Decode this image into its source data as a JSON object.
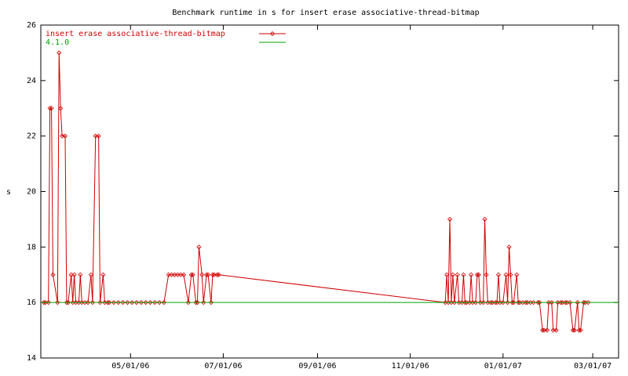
{
  "chart_data": {
    "type": "line",
    "title": "Benchmark runtime in s for insert erase associative-thread-bitmap",
    "y_label": "s",
    "xlim": [
      "2006-03-03",
      "2007-03-18"
    ],
    "xticks": [
      {
        "value": "2006-05-01",
        "label": "05/01/06"
      },
      {
        "value": "2006-07-01",
        "label": "07/01/06"
      },
      {
        "value": "2006-09-01",
        "label": "09/01/06"
      },
      {
        "value": "2006-11-01",
        "label": "11/01/06"
      },
      {
        "value": "2007-01-01",
        "label": "01/01/07"
      },
      {
        "value": "2007-03-01",
        "label": "03/01/07"
      }
    ],
    "ylim": [
      14,
      26
    ],
    "yticks": [
      14,
      16,
      18,
      20,
      22,
      24,
      26
    ],
    "legend": "top-left",
    "series": [
      {
        "name": "insert erase associative-thread-bitmap",
        "color": "#d00000",
        "markers": true,
        "x": [
          "2006-03-05",
          "2006-03-06",
          "2006-03-08",
          "2006-03-09",
          "2006-03-10",
          "2006-03-11",
          "2006-03-14",
          "2006-03-15",
          "2006-03-16",
          "2006-03-17",
          "2006-03-19",
          "2006-03-20",
          "2006-03-21",
          "2006-03-23",
          "2006-03-24",
          "2006-03-25",
          "2006-03-26",
          "2006-03-28",
          "2006-03-29",
          "2006-03-30",
          "2006-04-01",
          "2006-04-03",
          "2006-04-05",
          "2006-04-06",
          "2006-04-08",
          "2006-04-10",
          "2006-04-11",
          "2006-04-13",
          "2006-04-14",
          "2006-04-16",
          "2006-04-17",
          "2006-04-20",
          "2006-04-23",
          "2006-04-26",
          "2006-04-29",
          "2006-05-02",
          "2006-05-05",
          "2006-05-08",
          "2006-05-11",
          "2006-05-14",
          "2006-05-17",
          "2006-05-20",
          "2006-05-23",
          "2006-05-26",
          "2006-05-28",
          "2006-05-30",
          "2006-06-01",
          "2006-06-03",
          "2006-06-05",
          "2006-06-08",
          "2006-06-10",
          "2006-06-11",
          "2006-06-13",
          "2006-06-14",
          "2006-06-15",
          "2006-06-17",
          "2006-06-18",
          "2006-06-20",
          "2006-06-21",
          "2006-06-23",
          "2006-06-24",
          "2006-06-25",
          "2006-06-27",
          "2006-06-28",
          "2006-11-24",
          "2006-11-25",
          "2006-11-26",
          "2006-11-27",
          "2006-11-28",
          "2006-11-29",
          "2006-11-30",
          "2006-12-02",
          "2006-12-03",
          "2006-12-05",
          "2006-12-06",
          "2006-12-07",
          "2006-12-08",
          "2006-12-10",
          "2006-12-11",
          "2006-12-12",
          "2006-12-14",
          "2006-12-15",
          "2006-12-16",
          "2006-12-17",
          "2006-12-19",
          "2006-12-20",
          "2006-12-21",
          "2006-12-22",
          "2006-12-24",
          "2006-12-25",
          "2006-12-27",
          "2006-12-28",
          "2006-12-29",
          "2006-12-30",
          "2007-01-01",
          "2007-01-03",
          "2007-01-04",
          "2007-01-05",
          "2007-01-06",
          "2007-01-07",
          "2007-01-08",
          "2007-01-10",
          "2007-01-11",
          "2007-01-12",
          "2007-01-14",
          "2007-01-16",
          "2007-01-17",
          "2007-01-19",
          "2007-01-21",
          "2007-01-24",
          "2007-01-25",
          "2007-01-27",
          "2007-01-28",
          "2007-01-30",
          "2007-01-31",
          "2007-02-02",
          "2007-02-03",
          "2007-02-05",
          "2007-02-06",
          "2007-02-08",
          "2007-02-09",
          "2007-02-11",
          "2007-02-12",
          "2007-02-14",
          "2007-02-16",
          "2007-02-17",
          "2007-02-19",
          "2007-02-20",
          "2007-02-21",
          "2007-02-23",
          "2007-02-24",
          "2007-02-26"
        ],
        "values": [
          16,
          16,
          16,
          23,
          23,
          17,
          16,
          25,
          23,
          22,
          22,
          16,
          16,
          17,
          16,
          17,
          16,
          16,
          17,
          16,
          16,
          16,
          17,
          16,
          22,
          22,
          16,
          17,
          16,
          16,
          16,
          16,
          16,
          16,
          16,
          16,
          16,
          16,
          16,
          16,
          16,
          16,
          16,
          17,
          17,
          17,
          17,
          17,
          17,
          16,
          17,
          17,
          16,
          16,
          18,
          17,
          16,
          17,
          17,
          16,
          17,
          17,
          17,
          17,
          16,
          17,
          16,
          19,
          16,
          17,
          16,
          17,
          16,
          16,
          17,
          16,
          16,
          16,
          17,
          16,
          16,
          17,
          17,
          16,
          16,
          19,
          17,
          16,
          16,
          16,
          16,
          16,
          17,
          16,
          16,
          17,
          16,
          18,
          17,
          16,
          16,
          17,
          16,
          16,
          16,
          16,
          16,
          16,
          16,
          16,
          16,
          15,
          15,
          15,
          16,
          16,
          15,
          15,
          16,
          16,
          16,
          16,
          16,
          16,
          15,
          15,
          16,
          15,
          15,
          16,
          16,
          16
        ]
      },
      {
        "name": "4.1.0",
        "color": "#00a000",
        "markers": false,
        "x": [
          "2006-03-03",
          "2007-03-18"
        ],
        "values": [
          16,
          16
        ]
      }
    ]
  }
}
